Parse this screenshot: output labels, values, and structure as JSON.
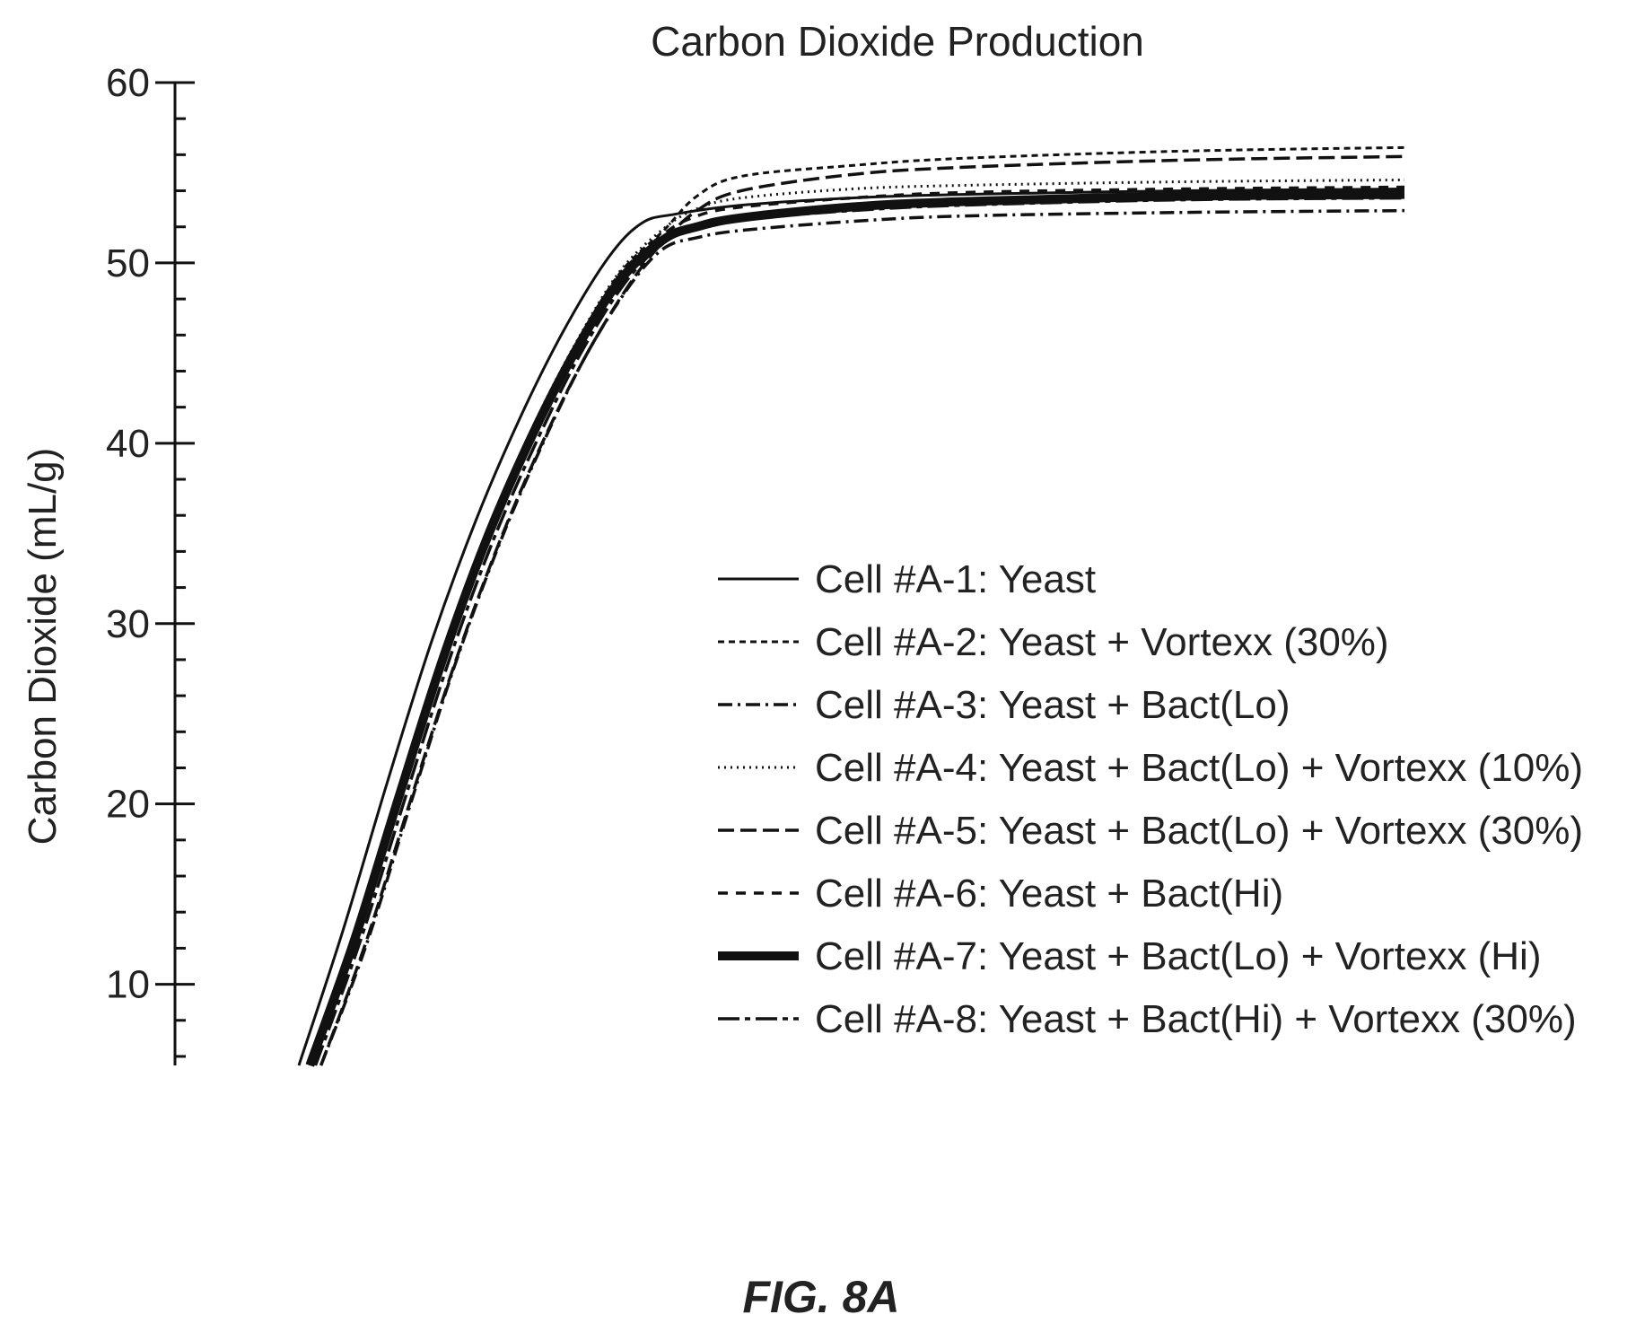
{
  "chart_data": {
    "type": "line",
    "title": "Carbon Dioxide Production",
    "xlabel": "",
    "ylabel": "Carbon Dioxide (mL/g)",
    "ylim": [
      5.5,
      60
    ],
    "yticks": [
      10,
      20,
      30,
      40,
      50,
      60
    ],
    "x_axis_shown": false,
    "grid": false,
    "legend_position": "center-right",
    "figure_label": "FIG. 8A",
    "series": [
      {
        "name": "Cell #A-1: Yeast",
        "style": "solid-thin",
        "points": [
          [
            0.0,
            5.5
          ],
          [
            0.04,
            13.0
          ],
          [
            0.08,
            21.2
          ],
          [
            0.12,
            29.0
          ],
          [
            0.16,
            35.7
          ],
          [
            0.2,
            41.4
          ],
          [
            0.24,
            46.3
          ],
          [
            0.28,
            50.3
          ],
          [
            0.31,
            52.2
          ],
          [
            0.34,
            52.7
          ],
          [
            0.4,
            53.2
          ],
          [
            0.5,
            53.6
          ],
          [
            0.6,
            53.8
          ],
          [
            0.8,
            54.0
          ],
          [
            1.0,
            54.1
          ]
        ]
      },
      {
        "name": "Cell #A-2: Yeast + Vortexx (30%)",
        "style": "dash-short",
        "points": [
          [
            0.01,
            5.5
          ],
          [
            0.05,
            12.5
          ],
          [
            0.09,
            20.5
          ],
          [
            0.13,
            28.2
          ],
          [
            0.17,
            35.0
          ],
          [
            0.21,
            40.6
          ],
          [
            0.25,
            45.4
          ],
          [
            0.29,
            49.4
          ],
          [
            0.33,
            51.8
          ],
          [
            0.36,
            53.7
          ],
          [
            0.4,
            54.8
          ],
          [
            0.5,
            55.4
          ],
          [
            0.6,
            55.8
          ],
          [
            0.8,
            56.2
          ],
          [
            1.0,
            56.4
          ]
        ]
      },
      {
        "name": "Cell #A-3: Yeast + Bact(Lo)",
        "style": "dash-dot",
        "points": [
          [
            0.02,
            5.5
          ],
          [
            0.06,
            12.0
          ],
          [
            0.1,
            19.8
          ],
          [
            0.14,
            27.5
          ],
          [
            0.18,
            34.2
          ],
          [
            0.22,
            39.9
          ],
          [
            0.26,
            44.9
          ],
          [
            0.3,
            48.8
          ],
          [
            0.33,
            50.8
          ],
          [
            0.36,
            51.4
          ],
          [
            0.4,
            51.8
          ],
          [
            0.5,
            52.3
          ],
          [
            0.6,
            52.6
          ],
          [
            0.8,
            52.8
          ],
          [
            1.0,
            52.9
          ]
        ]
      },
      {
        "name": "Cell #A-4: Yeast + Bact(Lo) + Vortexx (10%)",
        "style": "dotted",
        "points": [
          [
            0.01,
            5.5
          ],
          [
            0.05,
            12.8
          ],
          [
            0.09,
            20.8
          ],
          [
            0.13,
            28.4
          ],
          [
            0.17,
            35.1
          ],
          [
            0.21,
            40.7
          ],
          [
            0.25,
            45.5
          ],
          [
            0.29,
            49.5
          ],
          [
            0.33,
            51.9
          ],
          [
            0.36,
            53.0
          ],
          [
            0.4,
            53.6
          ],
          [
            0.5,
            54.1
          ],
          [
            0.6,
            54.3
          ],
          [
            0.8,
            54.5
          ],
          [
            1.0,
            54.6
          ]
        ]
      },
      {
        "name": "Cell #A-5: Yeast + Bact(Lo) + Vortexx (30%)",
        "style": "dash-long",
        "points": [
          [
            0.02,
            5.5
          ],
          [
            0.06,
            12.2
          ],
          [
            0.1,
            20.0
          ],
          [
            0.14,
            27.6
          ],
          [
            0.18,
            34.3
          ],
          [
            0.22,
            40.0
          ],
          [
            0.26,
            44.9
          ],
          [
            0.3,
            48.9
          ],
          [
            0.33,
            51.2
          ],
          [
            0.36,
            52.9
          ],
          [
            0.4,
            54.0
          ],
          [
            0.5,
            54.9
          ],
          [
            0.6,
            55.3
          ],
          [
            0.8,
            55.7
          ],
          [
            1.0,
            55.9
          ]
        ]
      },
      {
        "name": "Cell #A-6: Yeast + Bact(Hi)",
        "style": "dash-medium",
        "points": [
          [
            0.01,
            5.5
          ],
          [
            0.05,
            12.6
          ],
          [
            0.09,
            20.6
          ],
          [
            0.13,
            28.3
          ],
          [
            0.17,
            35.0
          ],
          [
            0.21,
            40.6
          ],
          [
            0.25,
            45.4
          ],
          [
            0.29,
            49.3
          ],
          [
            0.33,
            51.6
          ],
          [
            0.36,
            52.6
          ],
          [
            0.4,
            53.1
          ],
          [
            0.5,
            53.6
          ],
          [
            0.6,
            53.9
          ],
          [
            0.8,
            54.1
          ],
          [
            1.0,
            54.2
          ]
        ]
      },
      {
        "name": "Cell #A-7: Yeast + Bact(Lo) + Vortexx (Hi)",
        "style": "solid-thick",
        "points": [
          [
            0.01,
            5.5
          ],
          [
            0.05,
            12.4
          ],
          [
            0.09,
            20.3
          ],
          [
            0.13,
            28.0
          ],
          [
            0.17,
            34.7
          ],
          [
            0.21,
            40.3
          ],
          [
            0.25,
            45.1
          ],
          [
            0.29,
            49.0
          ],
          [
            0.33,
            51.3
          ],
          [
            0.36,
            52.0
          ],
          [
            0.4,
            52.5
          ],
          [
            0.5,
            53.1
          ],
          [
            0.6,
            53.4
          ],
          [
            0.8,
            53.7
          ],
          [
            1.0,
            53.8
          ]
        ]
      },
      {
        "name": "Cell #A-8: Yeast + Bact(Hi) + Vortexx (30%)",
        "style": "dash-dot-long",
        "points": [
          [
            0.015,
            5.5
          ],
          [
            0.055,
            12.3
          ],
          [
            0.095,
            20.1
          ],
          [
            0.135,
            27.8
          ],
          [
            0.175,
            34.5
          ],
          [
            0.215,
            40.1
          ],
          [
            0.255,
            45.0
          ],
          [
            0.295,
            48.9
          ],
          [
            0.33,
            51.1
          ],
          [
            0.36,
            51.9
          ],
          [
            0.4,
            52.4
          ],
          [
            0.5,
            52.9
          ],
          [
            0.6,
            53.2
          ],
          [
            0.8,
            53.5
          ],
          [
            1.0,
            53.6
          ]
        ]
      }
    ]
  }
}
